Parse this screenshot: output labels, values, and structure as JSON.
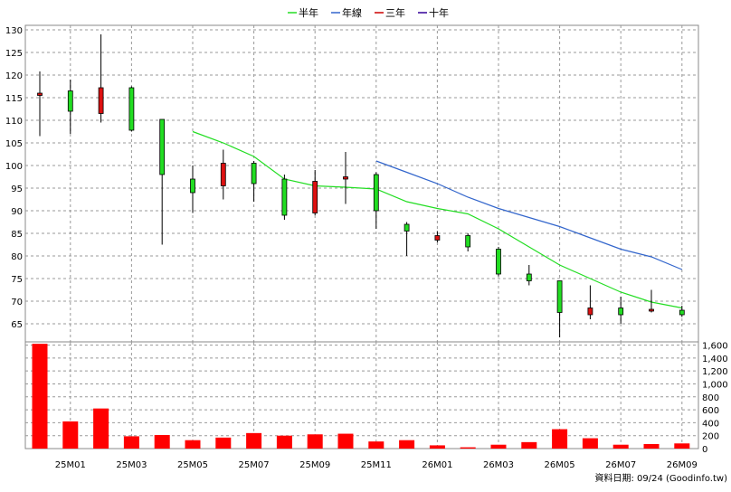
{
  "chart_data": {
    "type": "candlestick",
    "legend": [
      {
        "name": "半年",
        "color": "#22dd22"
      },
      {
        "name": "年線",
        "color": "#3366cc"
      },
      {
        "name": "三年",
        "color": "#cc0000"
      },
      {
        "name": "十年",
        "color": "#330099"
      }
    ],
    "price_axis": {
      "ylim": [
        61,
        131
      ],
      "ticks": [
        65,
        70,
        75,
        80,
        85,
        90,
        95,
        100,
        105,
        110,
        115,
        120,
        125,
        130
      ]
    },
    "volume_axis": {
      "ylim": [
        0,
        1650
      ],
      "ticks": [
        0,
        200,
        400,
        600,
        800,
        1000,
        1200,
        1400,
        1600
      ],
      "tick_labels": [
        "0",
        "200",
        "400",
        "600",
        "800",
        "1,000",
        "1,200",
        "1,400",
        "1,600"
      ]
    },
    "x_labels": [
      {
        "i": 1,
        "label": "25M01"
      },
      {
        "i": 3,
        "label": "25M03"
      },
      {
        "i": 5,
        "label": "25M05"
      },
      {
        "i": 7,
        "label": "25M07"
      },
      {
        "i": 9,
        "label": "25M09"
      },
      {
        "i": 11,
        "label": "25M11"
      },
      {
        "i": 13,
        "label": "26M01"
      },
      {
        "i": 15,
        "label": "26M03"
      },
      {
        "i": 17,
        "label": "26M05"
      },
      {
        "i": 19,
        "label": "26M07"
      },
      {
        "i": 21,
        "label": "26M09"
      }
    ],
    "candles": [
      {
        "i": 0,
        "open": 115.5,
        "high": 120.8,
        "low": 106.5,
        "close": 116.0,
        "volume": 1620
      },
      {
        "i": 1,
        "open": 116.5,
        "high": 119.0,
        "low": 107.0,
        "close": 112.0,
        "volume": 420
      },
      {
        "i": 2,
        "open": 111.5,
        "high": 129.0,
        "low": 109.5,
        "close": 117.2,
        "volume": 620
      },
      {
        "i": 3,
        "open": 117.2,
        "high": 117.5,
        "low": 107.5,
        "close": 107.8,
        "volume": 190
      },
      {
        "i": 4,
        "open": 110.2,
        "high": 110.2,
        "low": 82.5,
        "close": 98.0,
        "volume": 210
      },
      {
        "i": 5,
        "open": 97.0,
        "high": 100.0,
        "low": 89.5,
        "close": 94.0,
        "volume": 130
      },
      {
        "i": 6,
        "open": 95.5,
        "high": 103.5,
        "low": 92.5,
        "close": 100.5,
        "volume": 170
      },
      {
        "i": 7,
        "open": 100.5,
        "high": 101.0,
        "low": 92.0,
        "close": 96.0,
        "volume": 240
      },
      {
        "i": 8,
        "open": 97.0,
        "high": 98.0,
        "low": 88.0,
        "close": 89.0,
        "volume": 200
      },
      {
        "i": 9,
        "open": 89.5,
        "high": 99.0,
        "low": 89.0,
        "close": 96.5,
        "volume": 220
      },
      {
        "i": 10,
        "open": 97.0,
        "high": 103.0,
        "low": 91.5,
        "close": 97.5,
        "volume": 230
      },
      {
        "i": 11,
        "open": 98.0,
        "high": 98.5,
        "low": 86.0,
        "close": 90.0,
        "volume": 110
      },
      {
        "i": 12,
        "open": 87.0,
        "high": 87.5,
        "low": 80.0,
        "close": 85.5,
        "volume": 130
      },
      {
        "i": 13,
        "open": 83.5,
        "high": 85.5,
        "low": 83.0,
        "close": 84.5,
        "volume": 50
      },
      {
        "i": 14,
        "open": 84.5,
        "high": 85.0,
        "low": 81.0,
        "close": 82.0,
        "volume": 20
      },
      {
        "i": 15,
        "open": 81.5,
        "high": 82.0,
        "low": 75.5,
        "close": 76.0,
        "volume": 60
      },
      {
        "i": 16,
        "open": 76.0,
        "high": 78.0,
        "low": 73.5,
        "close": 74.5,
        "volume": 100
      },
      {
        "i": 17,
        "open": 74.5,
        "high": 74.5,
        "low": 62.0,
        "close": 67.5,
        "volume": 300
      },
      {
        "i": 18,
        "open": 67.0,
        "high": 73.5,
        "low": 66.0,
        "close": 68.5,
        "volume": 160
      },
      {
        "i": 19,
        "open": 68.5,
        "high": 71.0,
        "low": 65.0,
        "close": 67.0,
        "volume": 60
      },
      {
        "i": 20,
        "open": 68.0,
        "high": 72.5,
        "low": 67.5,
        "close": 68.2,
        "volume": 70
      },
      {
        "i": 21,
        "open": 68.0,
        "high": 69.0,
        "low": 66.5,
        "close": 67.0,
        "volume": 80
      }
    ],
    "ma_half_year": [
      [
        5,
        107.5
      ],
      [
        6,
        105.0
      ],
      [
        7,
        102.0
      ],
      [
        8,
        97.0
      ],
      [
        9,
        95.5
      ],
      [
        10,
        95.2
      ],
      [
        11,
        94.8
      ],
      [
        12,
        92.0
      ],
      [
        13,
        90.5
      ],
      [
        14,
        89.3
      ],
      [
        15,
        86.0
      ],
      [
        16,
        82.0
      ],
      [
        17,
        78.0
      ],
      [
        18,
        75.0
      ],
      [
        19,
        72.0
      ],
      [
        20,
        69.8
      ],
      [
        21,
        68.5
      ]
    ],
    "ma_year": [
      [
        11,
        101.0
      ],
      [
        12,
        98.5
      ],
      [
        13,
        96.0
      ],
      [
        14,
        93.0
      ],
      [
        15,
        90.5
      ],
      [
        16,
        88.5
      ],
      [
        17,
        86.5
      ],
      [
        18,
        84.0
      ],
      [
        19,
        81.5
      ],
      [
        20,
        79.8
      ],
      [
        21,
        77.0
      ]
    ],
    "footer": "資料日期: 09/24  (Goodinfo.tw)"
  }
}
